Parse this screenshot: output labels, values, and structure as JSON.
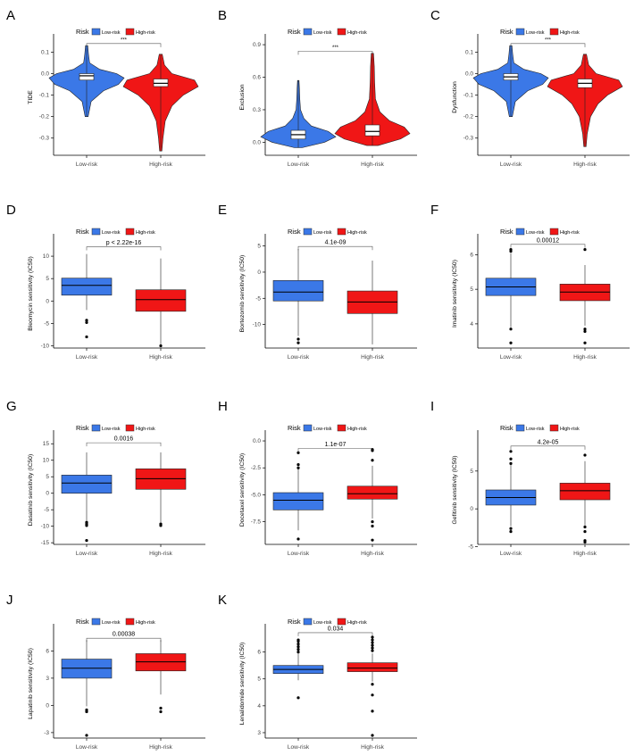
{
  "colors": {
    "low": "#3b78e7",
    "high": "#f01616",
    "axis": "#000000",
    "tick": "#444444"
  },
  "chart_data": [
    {
      "id": "A",
      "type": "violin",
      "panel_label": "A",
      "ylabel": "TIDE",
      "legend_title": "Risk",
      "legend": [
        "Low-risk",
        "High-risk"
      ],
      "categories": [
        "Low-risk",
        "High-risk"
      ],
      "ylim": [
        -0.38,
        0.16
      ],
      "yticks": [
        -0.3,
        -0.2,
        -0.1,
        0.0,
        0.1
      ],
      "yticklabels": [
        "-0.3",
        "-0.2",
        "-0.1",
        "0.0",
        "0.1"
      ],
      "significance": "***",
      "bracket_y": 0.14,
      "series": [
        {
          "name": "Low-risk",
          "min": -0.2,
          "q1": -0.03,
          "median": -0.01,
          "q3": 0.0,
          "max": 0.13,
          "density": [
            [
              -0.2,
              0.04
            ],
            [
              -0.13,
              0.12
            ],
            [
              -0.08,
              0.45
            ],
            [
              -0.05,
              0.85
            ],
            [
              -0.02,
              1.0
            ],
            [
              0.0,
              0.8
            ],
            [
              0.02,
              0.35
            ],
            [
              0.05,
              0.08
            ],
            [
              0.09,
              0.05
            ],
            [
              0.13,
              0.03
            ]
          ]
        },
        {
          "name": "High-risk",
          "min": -0.36,
          "q1": -0.06,
          "median": -0.045,
          "q3": -0.025,
          "max": 0.09,
          "density": [
            [
              -0.36,
              0.03
            ],
            [
              -0.3,
              0.06
            ],
            [
              -0.22,
              0.12
            ],
            [
              -0.15,
              0.3
            ],
            [
              -0.1,
              0.6
            ],
            [
              -0.06,
              1.0
            ],
            [
              -0.03,
              0.9
            ],
            [
              0.0,
              0.3
            ],
            [
              0.04,
              0.1
            ],
            [
              0.09,
              0.04
            ]
          ]
        }
      ]
    },
    {
      "id": "B",
      "type": "violin",
      "panel_label": "B",
      "ylabel": "Exclusion",
      "legend_title": "Risk",
      "legend": [
        "Low-risk",
        "High-risk"
      ],
      "categories": [
        "Low-risk",
        "High-risk"
      ],
      "ylim": [
        -0.12,
        0.95
      ],
      "yticks": [
        0.0,
        0.3,
        0.6,
        0.9
      ],
      "yticklabels": [
        "0.0",
        "0.3",
        "0.6",
        "0.9"
      ],
      "significance": "***",
      "bracket_y": 0.84,
      "series": [
        {
          "name": "Low-risk",
          "min": -0.05,
          "q1": 0.03,
          "median": 0.07,
          "q3": 0.11,
          "max": 0.57,
          "density": [
            [
              -0.05,
              0.1
            ],
            [
              0.0,
              0.7
            ],
            [
              0.05,
              1.0
            ],
            [
              0.1,
              0.8
            ],
            [
              0.15,
              0.35
            ],
            [
              0.22,
              0.15
            ],
            [
              0.3,
              0.06
            ],
            [
              0.4,
              0.04
            ],
            [
              0.5,
              0.03
            ],
            [
              0.57,
              0.02
            ]
          ]
        },
        {
          "name": "High-risk",
          "min": -0.03,
          "q1": 0.06,
          "median": 0.1,
          "q3": 0.16,
          "max": 0.82,
          "density": [
            [
              -0.03,
              0.15
            ],
            [
              0.03,
              0.75
            ],
            [
              0.08,
              1.0
            ],
            [
              0.14,
              0.85
            ],
            [
              0.2,
              0.45
            ],
            [
              0.28,
              0.2
            ],
            [
              0.4,
              0.08
            ],
            [
              0.55,
              0.06
            ],
            [
              0.7,
              0.05
            ],
            [
              0.82,
              0.03
            ]
          ]
        }
      ]
    },
    {
      "id": "C",
      "type": "violin",
      "panel_label": "C",
      "ylabel": "Dysfunction",
      "legend_title": "Risk",
      "legend": [
        "Low-risk",
        "High-risk"
      ],
      "categories": [
        "Low-risk",
        "High-risk"
      ],
      "ylim": [
        -0.38,
        0.16
      ],
      "yticks": [
        -0.3,
        -0.2,
        -0.1,
        0.0,
        0.1
      ],
      "yticklabels": [
        "-0.3",
        "-0.2",
        "-0.1",
        "0.0",
        "0.1"
      ],
      "significance": "***",
      "bracket_y": 0.14,
      "series": [
        {
          "name": "Low-risk",
          "min": -0.2,
          "q1": -0.03,
          "median": -0.015,
          "q3": 0.0,
          "max": 0.13,
          "density": [
            [
              -0.2,
              0.04
            ],
            [
              -0.13,
              0.12
            ],
            [
              -0.08,
              0.45
            ],
            [
              -0.05,
              0.85
            ],
            [
              -0.02,
              1.0
            ],
            [
              0.0,
              0.8
            ],
            [
              0.02,
              0.35
            ],
            [
              0.05,
              0.08
            ],
            [
              0.09,
              0.05
            ],
            [
              0.13,
              0.03
            ]
          ]
        },
        {
          "name": "High-risk",
          "min": -0.34,
          "q1": -0.065,
          "median": -0.045,
          "q3": -0.025,
          "max": 0.09,
          "density": [
            [
              -0.34,
              0.03
            ],
            [
              -0.28,
              0.06
            ],
            [
              -0.2,
              0.15
            ],
            [
              -0.14,
              0.35
            ],
            [
              -0.1,
              0.6
            ],
            [
              -0.06,
              1.0
            ],
            [
              -0.03,
              0.9
            ],
            [
              0.0,
              0.3
            ],
            [
              0.04,
              0.1
            ],
            [
              0.09,
              0.04
            ]
          ]
        }
      ]
    },
    {
      "id": "D",
      "type": "box",
      "panel_label": "D",
      "ylabel": "Bleomycin sensitivity (IC50)",
      "legend_title": "Risk",
      "legend": [
        "Low-risk",
        "High-risk"
      ],
      "categories": [
        "Low-risk",
        "High-risk"
      ],
      "ylim": [
        -10.5,
        13.8
      ],
      "yticks": [
        -10,
        -5,
        0,
        5,
        10
      ],
      "yticklabels": [
        "-10",
        "-5",
        "0",
        "5",
        "10"
      ],
      "pvalue": "p < 2.22e-16",
      "bracket_y": 12.1,
      "series": [
        {
          "name": "Low-risk",
          "min": -2.0,
          "q1": 1.3,
          "median": 3.5,
          "q3": 5.1,
          "max": 10.5,
          "outliers": [
            -4.3,
            -4.8,
            -8.0
          ]
        },
        {
          "name": "High-risk",
          "min": -9.9,
          "q1": -2.3,
          "median": 0.3,
          "q3": 2.5,
          "max": 9.5,
          "outliers": [
            -10.0
          ]
        }
      ]
    },
    {
      "id": "E",
      "type": "box",
      "panel_label": "E",
      "ylabel": "Bortezomib sensitivity (IC50)",
      "legend_title": "Risk",
      "legend": [
        "Low-risk",
        "High-risk"
      ],
      "categories": [
        "Low-risk",
        "High-risk"
      ],
      "ylim": [
        -14.5,
        6.3
      ],
      "yticks": [
        -10,
        -5,
        0,
        5
      ],
      "yticklabels": [
        "-10",
        "-5",
        "0",
        "5"
      ],
      "pvalue": "4.1e-09",
      "bracket_y": 4.9,
      "series": [
        {
          "name": "Low-risk",
          "min": -12.2,
          "q1": -5.5,
          "median": -3.8,
          "q3": -1.6,
          "max": 4.4,
          "outliers": [
            -12.8,
            -13.5
          ]
        },
        {
          "name": "High-risk",
          "min": -13.8,
          "q1": -7.9,
          "median": -5.7,
          "q3": -3.6,
          "max": 2.2,
          "outliers": []
        }
      ]
    },
    {
      "id": "F",
      "type": "box",
      "panel_label": "F",
      "ylabel": "Imatinib sensitivity (IC50)",
      "legend_title": "Risk",
      "legend": [
        "Low-risk",
        "High-risk"
      ],
      "categories": [
        "Low-risk",
        "High-risk"
      ],
      "ylim": [
        3.3,
        6.45
      ],
      "yticks": [
        4,
        5,
        6
      ],
      "yticklabels": [
        "4",
        "5",
        "6"
      ],
      "pvalue": "0.00012",
      "bracket_y": 6.3,
      "series": [
        {
          "name": "Low-risk",
          "min": 3.9,
          "q1": 4.82,
          "median": 5.07,
          "q3": 5.32,
          "max": 6.05,
          "outliers": [
            6.15,
            6.1,
            3.85,
            3.45
          ]
        },
        {
          "name": "High-risk",
          "min": 3.95,
          "q1": 4.67,
          "median": 4.92,
          "q3": 5.15,
          "max": 5.7,
          "outliers": [
            6.15,
            3.85,
            3.78,
            3.45
          ]
        }
      ]
    },
    {
      "id": "G",
      "type": "box",
      "panel_label": "G",
      "ylabel": "Dasatinib sensitivity (IC50)",
      "legend_title": "Risk",
      "legend": [
        "Low-risk",
        "High-risk"
      ],
      "categories": [
        "Low-risk",
        "High-risk"
      ],
      "ylim": [
        -15.5,
        17.5
      ],
      "yticks": [
        -15,
        -10,
        -5,
        0,
        5,
        10,
        15
      ],
      "yticklabels": [
        "-15",
        "-10",
        "-5",
        "0",
        "5",
        "10",
        "15"
      ],
      "pvalue": "0.0016",
      "bracket_y": 15.3,
      "series": [
        {
          "name": "Low-risk",
          "min": -8.3,
          "q1": 0.0,
          "median": 3.1,
          "q3": 5.5,
          "max": 12.4,
          "outliers": [
            -8.8,
            -9.3,
            -9.8,
            -14.3
          ]
        },
        {
          "name": "High-risk",
          "min": -8.8,
          "q1": 1.2,
          "median": 4.4,
          "q3": 7.4,
          "max": 12.4,
          "outliers": [
            -9.3,
            -9.8
          ]
        }
      ]
    },
    {
      "id": "H",
      "type": "box",
      "panel_label": "H",
      "ylabel": "Docetaxel sensitivity (IC50)",
      "legend_title": "Risk",
      "legend": [
        "Low-risk",
        "High-risk"
      ],
      "categories": [
        "Low-risk",
        "High-risk"
      ],
      "ylim": [
        -9.6,
        0.5
      ],
      "yticks": [
        -7.5,
        -5.0,
        -2.5,
        0.0
      ],
      "yticklabels": [
        "-7.5",
        "-5.0",
        "-2.5",
        "0.0"
      ],
      "pvalue": "1.1e-07",
      "bracket_y": -0.7,
      "series": [
        {
          "name": "Low-risk",
          "min": -8.3,
          "q1": -6.4,
          "median": -5.5,
          "q3": -4.8,
          "max": -2.6,
          "outliers": [
            -1.1,
            -2.2,
            -2.5,
            -9.1
          ]
        },
        {
          "name": "High-risk",
          "min": -7.2,
          "q1": -5.4,
          "median": -4.9,
          "q3": -4.2,
          "max": -2.3,
          "outliers": [
            -1.8,
            -0.8,
            -0.9,
            -7.5,
            -7.9,
            -9.2
          ]
        }
      ]
    },
    {
      "id": "I",
      "type": "box",
      "panel_label": "I",
      "ylabel": "Gefitinib sensitivity (IC50)",
      "legend_title": "Risk",
      "legend": [
        "Low-risk",
        "High-risk"
      ],
      "categories": [
        "Low-risk",
        "High-risk"
      ],
      "ylim": [
        -4.7,
        9.7
      ],
      "yticks": [
        -5,
        0,
        5
      ],
      "yticklabels": [
        "-5",
        "0",
        "5"
      ],
      "pvalue": "4.2e-05",
      "bracket_y": 8.3,
      "series": [
        {
          "name": "Low-risk",
          "min": -2.3,
          "q1": 0.5,
          "median": 1.5,
          "q3": 2.5,
          "max": 5.8,
          "outliers": [
            7.6,
            6.6,
            6.0,
            -2.6,
            -3.0
          ]
        },
        {
          "name": "High-risk",
          "min": -2.2,
          "q1": 1.2,
          "median": 2.4,
          "q3": 3.4,
          "max": 6.3,
          "outliers": [
            7.1,
            -2.4,
            -3.0,
            -4.2,
            -4.4
          ]
        }
      ]
    },
    {
      "id": "J",
      "type": "box",
      "panel_label": "J",
      "ylabel": "Lapatinib sensitivity (IC50)",
      "legend_title": "Risk",
      "legend": [
        "Low-risk",
        "High-risk"
      ],
      "categories": [
        "Low-risk",
        "High-risk"
      ],
      "ylim": [
        -3.6,
        8.4
      ],
      "yticks": [
        -3,
        0,
        3,
        6
      ],
      "yticklabels": [
        "-3",
        "0",
        "3",
        "6"
      ],
      "pvalue": "0.00038",
      "bracket_y": 7.4,
      "series": [
        {
          "name": "Low-risk",
          "min": -0.1,
          "q1": 3.0,
          "median": 4.1,
          "q3": 5.1,
          "max": 7.2,
          "outliers": [
            -0.5,
            -0.7,
            -3.3
          ]
        },
        {
          "name": "High-risk",
          "min": 1.2,
          "q1": 3.8,
          "median": 4.8,
          "q3": 5.7,
          "max": 7.2,
          "outliers": [
            -0.3,
            -0.7
          ]
        }
      ]
    },
    {
      "id": "K",
      "type": "box",
      "panel_label": "K",
      "ylabel": "Lenalidomide sensitivity (IC50)",
      "legend_title": "Risk",
      "legend": [
        "Low-risk",
        "High-risk"
      ],
      "categories": [
        "Low-risk",
        "High-risk"
      ],
      "ylim": [
        2.8,
        6.85
      ],
      "yticks": [
        3,
        4,
        5,
        6
      ],
      "yticklabels": [
        "3",
        "4",
        "5",
        "6"
      ],
      "pvalue": "0.034",
      "bracket_y": 6.72,
      "series": [
        {
          "name": "Low-risk",
          "min": 4.95,
          "q1": 5.2,
          "median": 5.35,
          "q3": 5.5,
          "max": 5.95,
          "outliers": [
            6.45,
            6.4,
            6.3,
            6.2,
            6.1,
            6.0,
            4.3
          ]
        },
        {
          "name": "High-risk",
          "min": 4.9,
          "q1": 5.27,
          "median": 5.4,
          "q3": 5.6,
          "max": 5.95,
          "outliers": [
            6.55,
            6.45,
            6.35,
            6.25,
            6.15,
            6.05,
            4.8,
            4.4,
            3.8,
            2.9
          ]
        }
      ]
    }
  ]
}
